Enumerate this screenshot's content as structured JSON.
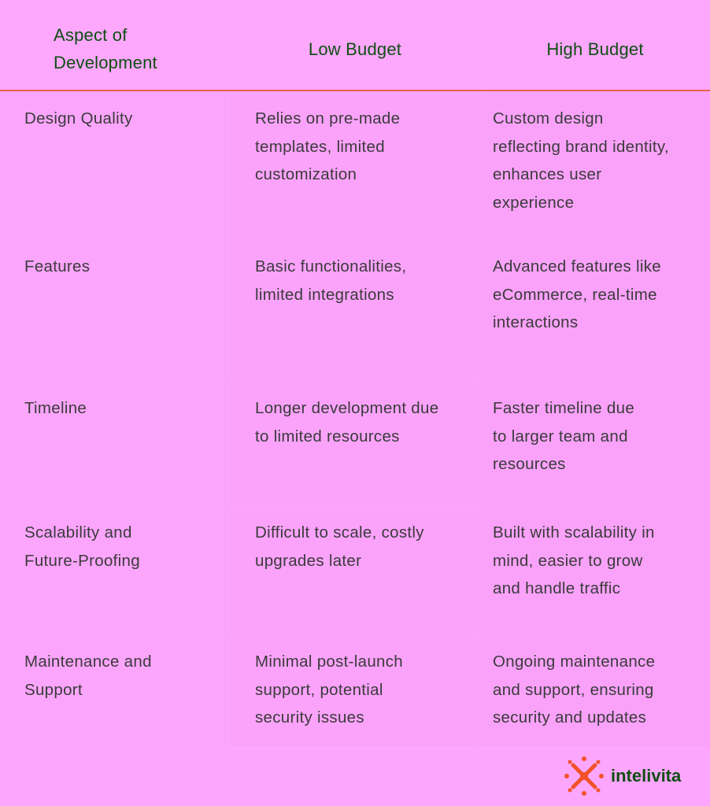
{
  "table": {
    "header": [
      [
        "Aspect of",
        "Development"
      ],
      [
        "Low Budget"
      ],
      [
        "High Budget"
      ]
    ],
    "rows": [
      [
        [
          "Design Quality"
        ],
        [
          "Relies on pre-made",
          "templates, limited",
          "customization"
        ],
        [
          "Custom design",
          "reflecting brand identity,",
          "enhances user",
          "experience"
        ]
      ],
      [
        [
          "Features"
        ],
        [
          "Basic functionalities,",
          "limited integrations"
        ],
        [
          "Advanced features like",
          "eCommerce, real-time",
          "interactions"
        ]
      ],
      [
        [
          "Timeline"
        ],
        [
          "Longer development due",
          "to limited resources"
        ],
        [
          "Faster timeline due",
          "to larger team and",
          "resources"
        ]
      ],
      [
        [
          "Scalability and",
          "Future-Proofing"
        ],
        [
          "Difficult to scale, costly",
          "upgrades later"
        ],
        [
          "Built with scalability in",
          "mind, easier to grow",
          "and handle traffic"
        ]
      ],
      [
        [
          "Maintenance and",
          "Support"
        ],
        [
          "Minimal post-launch",
          "support, potential",
          "security issues"
        ],
        [
          "Ongoing maintenance",
          "and support, ensuring",
          "security and updates"
        ]
      ]
    ]
  },
  "logo": {
    "text": "intelivita"
  }
}
